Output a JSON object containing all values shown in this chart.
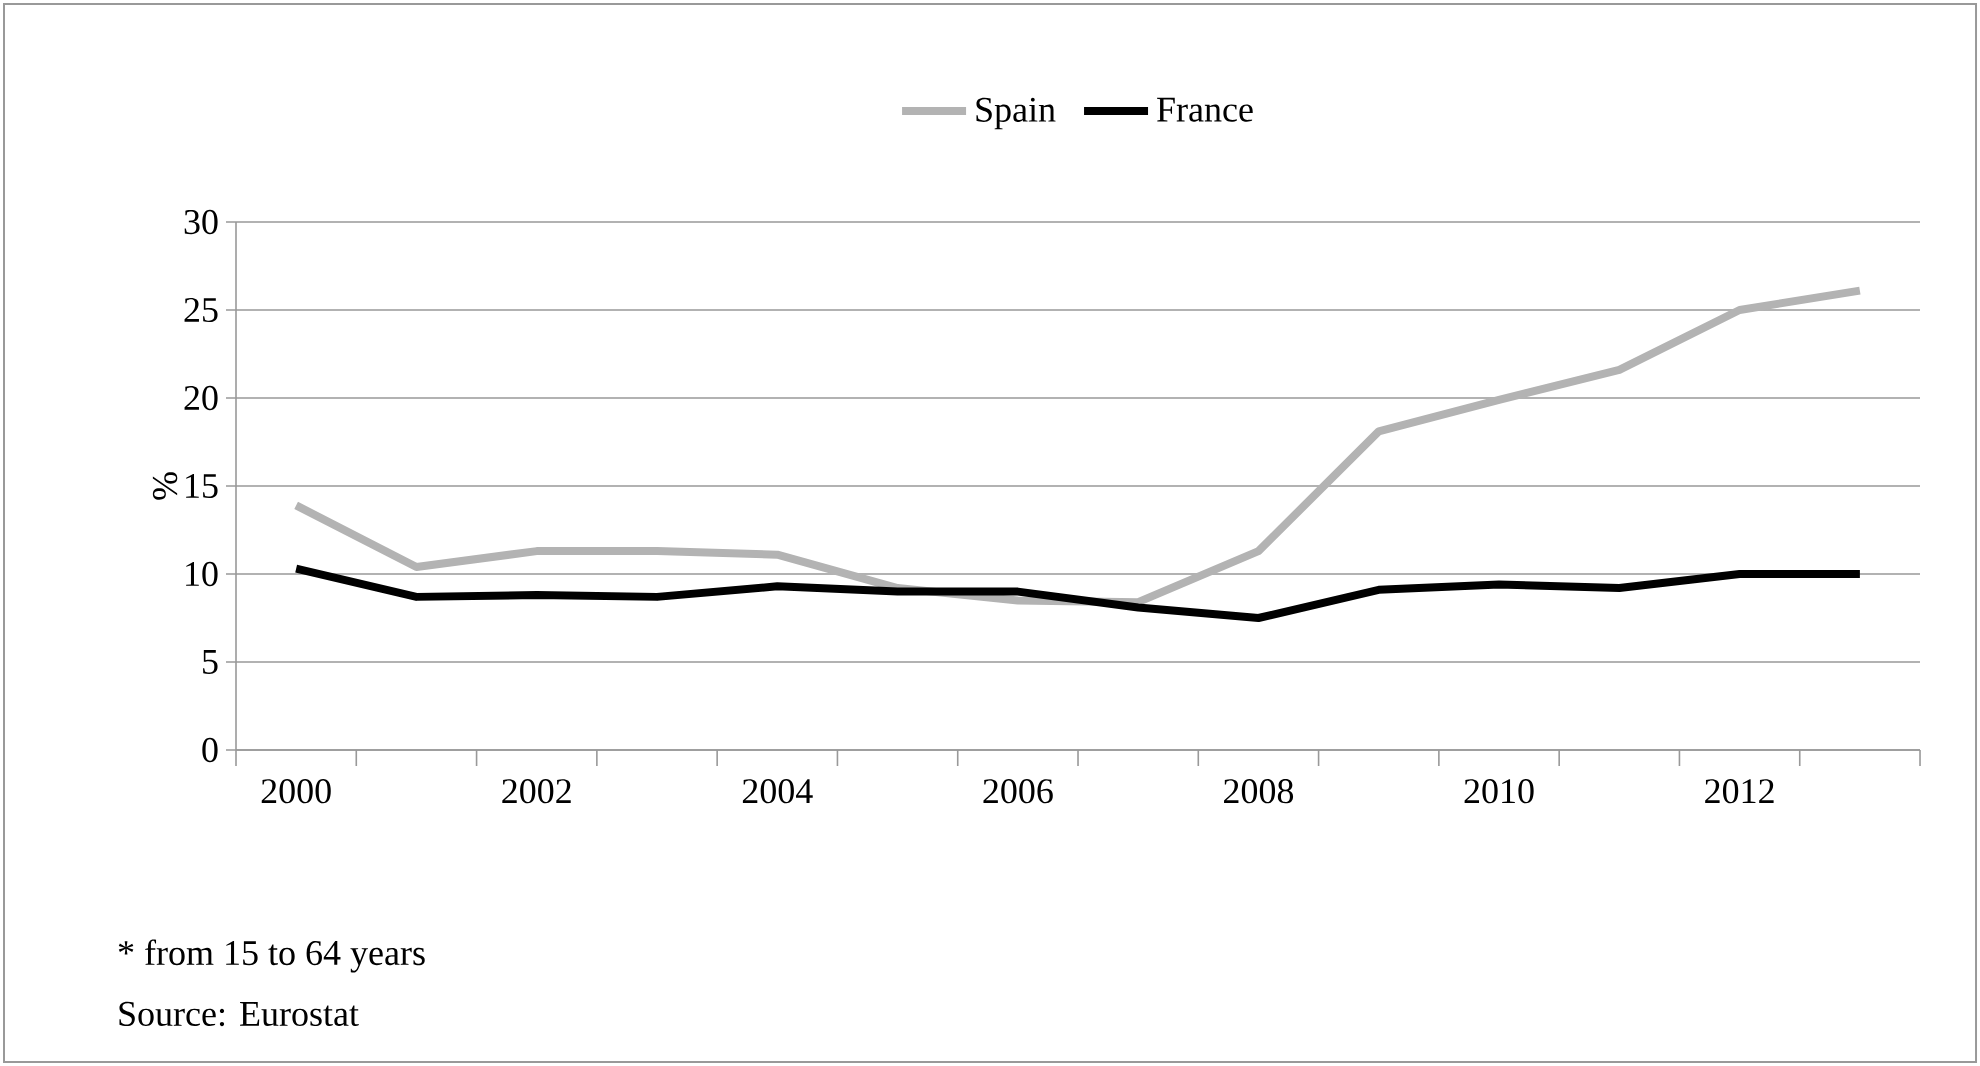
{
  "chart_data": {
    "type": "line",
    "categories": [
      "2000",
      null,
      "2002",
      null,
      "2004",
      null,
      "2006",
      null,
      "2008",
      null,
      "2010",
      null,
      "2012",
      null
    ],
    "ylabel": "%",
    "ylim": [
      0,
      30
    ],
    "yticks": [
      0,
      5,
      10,
      15,
      20,
      25,
      30
    ],
    "grid": "y",
    "legend": "top",
    "marker": "none",
    "line_style": "solid",
    "series": [
      {
        "name": "Spain",
        "color": "#b3b3b3",
        "values": [
          13.9,
          10.4,
          11.3,
          11.3,
          11.1,
          9.2,
          8.5,
          8.4,
          11.3,
          18.1,
          19.9,
          21.6,
          25.0,
          26.1
        ]
      },
      {
        "name": "France",
        "color": "#000000",
        "values": [
          10.3,
          8.7,
          8.8,
          8.7,
          9.3,
          9.0,
          9.0,
          8.1,
          7.5,
          9.1,
          9.4,
          9.2,
          10.0,
          10.0
        ]
      }
    ],
    "annotations": [
      "* from 15 to 64 years",
      "Source: Eurostat"
    ]
  }
}
